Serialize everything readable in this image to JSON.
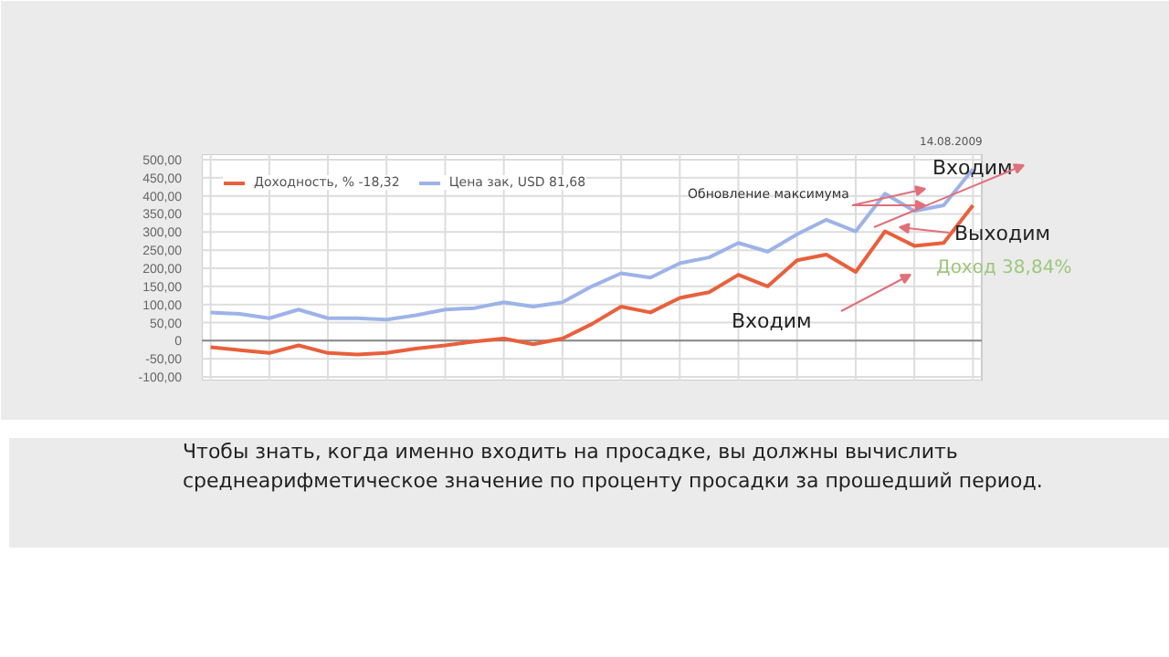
{
  "chart_data": {
    "type": "line",
    "subtitle": "14.08.2009",
    "categories": [
      null,
      null,
      null,
      null,
      null,
      null,
      null,
      null,
      null,
      null,
      null,
      null,
      null,
      null,
      null,
      null,
      null,
      null,
      null,
      null,
      null,
      null,
      null,
      null,
      null,
      null,
      null
    ],
    "series": [
      {
        "name": "Доходность, % -18,32",
        "color": "#e8603c",
        "values": [
          -18,
          -26,
          -34,
          -13,
          -34,
          -38,
          -34,
          -22,
          -13,
          -2,
          6,
          -10,
          6,
          46,
          94,
          78,
          118,
          134,
          182,
          150,
          222,
          238,
          190,
          302,
          262,
          270,
          374
        ]
      },
      {
        "name": "Цена зак, USD 81,68",
        "color": "#9db3e8",
        "values": [
          78,
          74,
          62,
          86,
          62,
          62,
          58,
          70,
          86,
          90,
          106,
          94,
          106,
          150,
          186,
          174,
          214,
          230,
          270,
          246,
          294,
          334,
          302,
          406,
          358,
          374,
          474
        ]
      }
    ],
    "ylim": [
      -110,
      515
    ],
    "yticks": [
      {
        "value": -100,
        "label": "-100,00"
      },
      {
        "value": -50,
        "label": "-50,00"
      },
      0,
      {
        "value": 50,
        "label": "50,00"
      },
      {
        "value": 100,
        "label": "100,00"
      },
      {
        "value": 150,
        "label": "150,00"
      },
      {
        "value": 200,
        "label": "200,00"
      },
      {
        "value": 250,
        "label": "250,00"
      },
      {
        "value": 300,
        "label": "300,00"
      },
      {
        "value": 350,
        "label": "350,00"
      },
      {
        "value": 400,
        "label": "400,00"
      },
      {
        "value": 450,
        "label": "450,00"
      },
      {
        "value": 500,
        "label": "500,00"
      }
    ],
    "tick_labels": "y",
    "grid": true,
    "legend": "top left",
    "marker": "none",
    "line_style": "solid",
    "ref_lines": [
      {
        "axis": "y",
        "value": 0,
        "color": "#888888"
      }
    ],
    "annotations": [
      "Обновление максимума",
      "Входим",
      "Выходим",
      "Доход 38,84%",
      "Входим",
      "Чтобы знать, когда именно входить на просадке, вы должны вычислить",
      "среднеарифметическое значение по проценту просадки за прошедший период."
    ]
  }
}
